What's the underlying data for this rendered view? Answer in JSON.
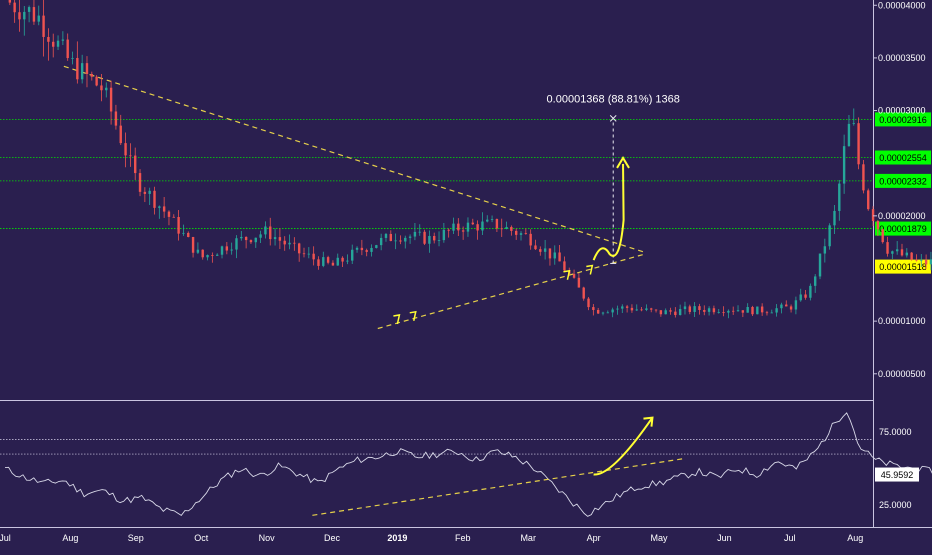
{
  "chart_data": {
    "type": "candlestick",
    "colors": {
      "background": "#2a1f4f",
      "up": "#26a69a",
      "down": "#ef5350",
      "level_line": "#00e600",
      "level_tag": "#00ff00",
      "current_price_tag": "#ffff00",
      "trendline": "#e6d04a",
      "annotation": "#ffff33",
      "rsi_line": "#d8d8e8",
      "text": "#ffffff"
    },
    "x_tick_labels": [
      "Jul",
      "Aug",
      "Sep",
      "Oct",
      "Nov",
      "Dec",
      "2019",
      "Feb",
      "Mar",
      "Apr",
      "May",
      "Jun",
      "Jul",
      "Aug"
    ],
    "price_axis": {
      "ylim": [
        2.7e-06,
        4.05e-05
      ],
      "ticks": [
        {
          "value": 4e-05,
          "label": "0.00004000"
        },
        {
          "value": 3.5e-05,
          "label": "0.00003500"
        },
        {
          "value": 3e-05,
          "label": "0.00003000"
        },
        {
          "value": 2e-05,
          "label": "0.00002000"
        },
        {
          "value": 1e-05,
          "label": "0.00001000"
        },
        {
          "value": 5e-06,
          "label": "0.00000500"
        }
      ]
    },
    "horizontal_levels": [
      {
        "value": 2.916e-05,
        "label": "0.00002916"
      },
      {
        "value": 2.554e-05,
        "label": "0.00002554"
      },
      {
        "value": 2.332e-05,
        "label": "0.00002332"
      },
      {
        "value": 1.879e-05,
        "label": "0.00001879"
      }
    ],
    "current_price": {
      "value": 1.518e-05,
      "label": "0.00001518"
    },
    "measure_label": "0.00001368 (88.81%) 1368",
    "measure_range": [
      1.548e-05,
      2.916e-05
    ],
    "price_keypoints": [
      [
        0.0,
        4.05e-05
      ],
      [
        0.5,
        3.9e-05
      ],
      [
        1.0,
        3.45e-05
      ],
      [
        1.5,
        3.2e-05
      ],
      [
        2.0,
        2.35e-05
      ],
      [
        2.5,
        2e-05
      ],
      [
        3.0,
        1.6e-05
      ],
      [
        3.5,
        1.75e-05
      ],
      [
        4.0,
        1.85e-05
      ],
      [
        4.5,
        1.65e-05
      ],
      [
        5.0,
        1.52e-05
      ],
      [
        5.5,
        1.7e-05
      ],
      [
        6.0,
        1.82e-05
      ],
      [
        6.5,
        1.78e-05
      ],
      [
        7.0,
        1.9e-05
      ],
      [
        7.5,
        1.92e-05
      ],
      [
        8.0,
        1.8e-05
      ],
      [
        8.5,
        1.55e-05
      ],
      [
        9.0,
        1.1e-05
      ],
      [
        9.5,
        1.13e-05
      ],
      [
        10.0,
        1.08e-05
      ],
      [
        10.5,
        1.11e-05
      ],
      [
        11.0,
        1.12e-05
      ],
      [
        11.5,
        1.1e-05
      ],
      [
        12.0,
        1.13e-05
      ],
      [
        12.3,
        1.28e-05
      ],
      [
        12.7,
        2.05e-05
      ],
      [
        12.85,
        2.7e-05
      ],
      [
        12.95,
        2.95e-05
      ],
      [
        13.05,
        2.5e-05
      ],
      [
        13.2,
        2.1e-05
      ],
      [
        13.5,
        1.68e-05
      ],
      [
        14.0,
        1.55e-05
      ],
      [
        14.5,
        1.58e-05
      ],
      [
        15.0,
        1.45e-05
      ],
      [
        15.5,
        1.6e-05
      ],
      [
        16.0,
        1.65e-05
      ],
      [
        16.5,
        1.58e-05
      ],
      [
        17.0,
        1.58e-05
      ],
      [
        17.3,
        1.72e-05
      ],
      [
        17.45,
        1.55e-05
      ],
      [
        17.55,
        1.52e-05
      ]
    ],
    "rsi_axis": {
      "ylim": [
        10,
        95
      ],
      "ticks": [
        {
          "value": 75,
          "label": "75.0000"
        },
        {
          "value": 25,
          "label": "25.0000"
        }
      ],
      "guide_lines": [
        70,
        60
      ],
      "current": {
        "value": 45.9592,
        "label": "45.9592"
      }
    },
    "rsi_keypoints": [
      [
        0.0,
        50
      ],
      [
        0.3,
        44
      ],
      [
        0.6,
        40
      ],
      [
        0.9,
        42
      ],
      [
        1.2,
        33
      ],
      [
        1.5,
        35
      ],
      [
        1.8,
        28
      ],
      [
        2.1,
        30
      ],
      [
        2.4,
        22
      ],
      [
        2.7,
        18
      ],
      [
        3.0,
        30
      ],
      [
        3.3,
        42
      ],
      [
        3.6,
        50
      ],
      [
        3.9,
        45
      ],
      [
        4.2,
        52
      ],
      [
        4.5,
        46
      ],
      [
        4.8,
        40
      ],
      [
        5.1,
        50
      ],
      [
        5.4,
        56
      ],
      [
        5.7,
        58
      ],
      [
        6.0,
        62
      ],
      [
        6.3,
        58
      ],
      [
        6.6,
        60
      ],
      [
        6.9,
        62
      ],
      [
        7.2,
        56
      ],
      [
        7.5,
        62
      ],
      [
        7.8,
        58
      ],
      [
        8.1,
        50
      ],
      [
        8.4,
        38
      ],
      [
        8.7,
        26
      ],
      [
        8.9,
        19
      ],
      [
        9.1,
        24
      ],
      [
        9.4,
        32
      ],
      [
        9.7,
        38
      ],
      [
        10.0,
        40
      ],
      [
        10.3,
        44
      ],
      [
        10.6,
        48
      ],
      [
        10.9,
        44
      ],
      [
        11.2,
        50
      ],
      [
        11.5,
        46
      ],
      [
        11.8,
        55
      ],
      [
        12.1,
        50
      ],
      [
        12.4,
        62
      ],
      [
        12.7,
        82
      ],
      [
        12.88,
        91
      ],
      [
        13.05,
        66
      ],
      [
        13.3,
        56
      ],
      [
        13.6,
        52
      ],
      [
        13.9,
        50
      ],
      [
        14.2,
        48
      ],
      [
        14.5,
        52
      ],
      [
        14.8,
        44
      ],
      [
        15.1,
        52
      ],
      [
        15.4,
        56
      ],
      [
        15.6,
        62
      ],
      [
        15.8,
        54
      ],
      [
        16.1,
        58
      ],
      [
        16.4,
        52
      ],
      [
        16.7,
        48
      ],
      [
        17.0,
        56
      ],
      [
        17.2,
        52
      ],
      [
        17.35,
        64
      ],
      [
        17.5,
        50
      ],
      [
        17.6,
        46
      ]
    ]
  }
}
